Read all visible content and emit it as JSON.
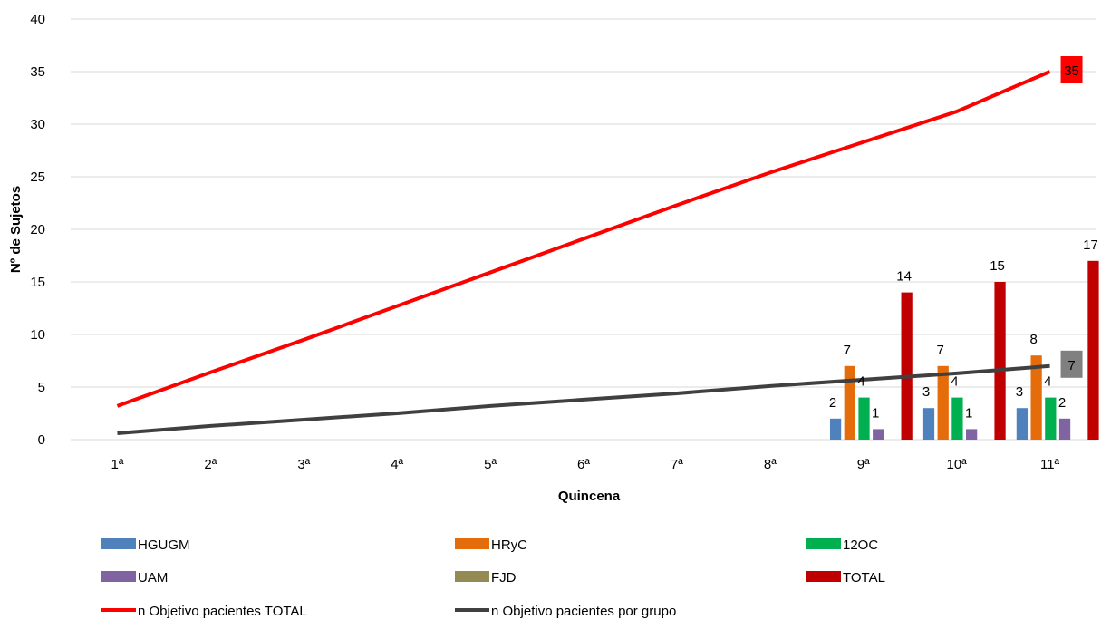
{
  "chart_data": {
    "type": "bar",
    "xlabel": "Quincena",
    "ylabel": "Nº de Sujetos",
    "ylim": [
      0,
      40
    ],
    "yticks": [
      0,
      5,
      10,
      15,
      20,
      25,
      30,
      35,
      40
    ],
    "grid": true,
    "legend_position": "bottom",
    "categories": [
      "1ª",
      "2ª",
      "3ª",
      "4ª",
      "5ª",
      "6ª",
      "7ª",
      "8ª",
      "9ª",
      "10ª",
      "11ª"
    ],
    "series": [
      {
        "name": "HGUGM",
        "type": "bar",
        "color": "#4F81BD",
        "values": [
          null,
          null,
          null,
          null,
          null,
          null,
          null,
          null,
          2,
          3,
          3
        ]
      },
      {
        "name": "HRyC",
        "type": "bar",
        "color": "#E46C0A",
        "values": [
          null,
          null,
          null,
          null,
          null,
          null,
          null,
          null,
          7,
          7,
          8
        ]
      },
      {
        "name": "12OC",
        "type": "bar",
        "color": "#00B050",
        "values": [
          null,
          null,
          null,
          null,
          null,
          null,
          null,
          null,
          4,
          4,
          4
        ]
      },
      {
        "name": "UAM",
        "type": "bar",
        "color": "#8064A2",
        "values": [
          null,
          null,
          null,
          null,
          null,
          null,
          null,
          null,
          1,
          1,
          2
        ]
      },
      {
        "name": "FJD",
        "type": "bar",
        "color": "#948A54",
        "values": [
          null,
          null,
          null,
          null,
          null,
          null,
          null,
          null,
          0,
          0,
          0
        ]
      },
      {
        "name": "TOTAL",
        "type": "bar",
        "color": "#C00000",
        "values": [
          null,
          null,
          null,
          null,
          null,
          null,
          null,
          null,
          14,
          15,
          17
        ]
      },
      {
        "name": "n Objetivo pacientes TOTAL",
        "type": "line",
        "color": "#FF0000",
        "values": [
          3.2,
          6.4,
          9.5,
          12.7,
          15.9,
          19.1,
          22.3,
          25.4,
          28.3,
          31.2,
          35
        ],
        "end_label": "35",
        "end_label_bg": "#FF0000"
      },
      {
        "name": "n Objetivo pacientes por grupo",
        "type": "line",
        "color": "#404040",
        "values": [
          0.6,
          1.3,
          1.9,
          2.5,
          3.2,
          3.8,
          4.4,
          5.1,
          5.7,
          6.3,
          7
        ],
        "end_label": "7",
        "end_label_bg": "#808080"
      }
    ]
  }
}
